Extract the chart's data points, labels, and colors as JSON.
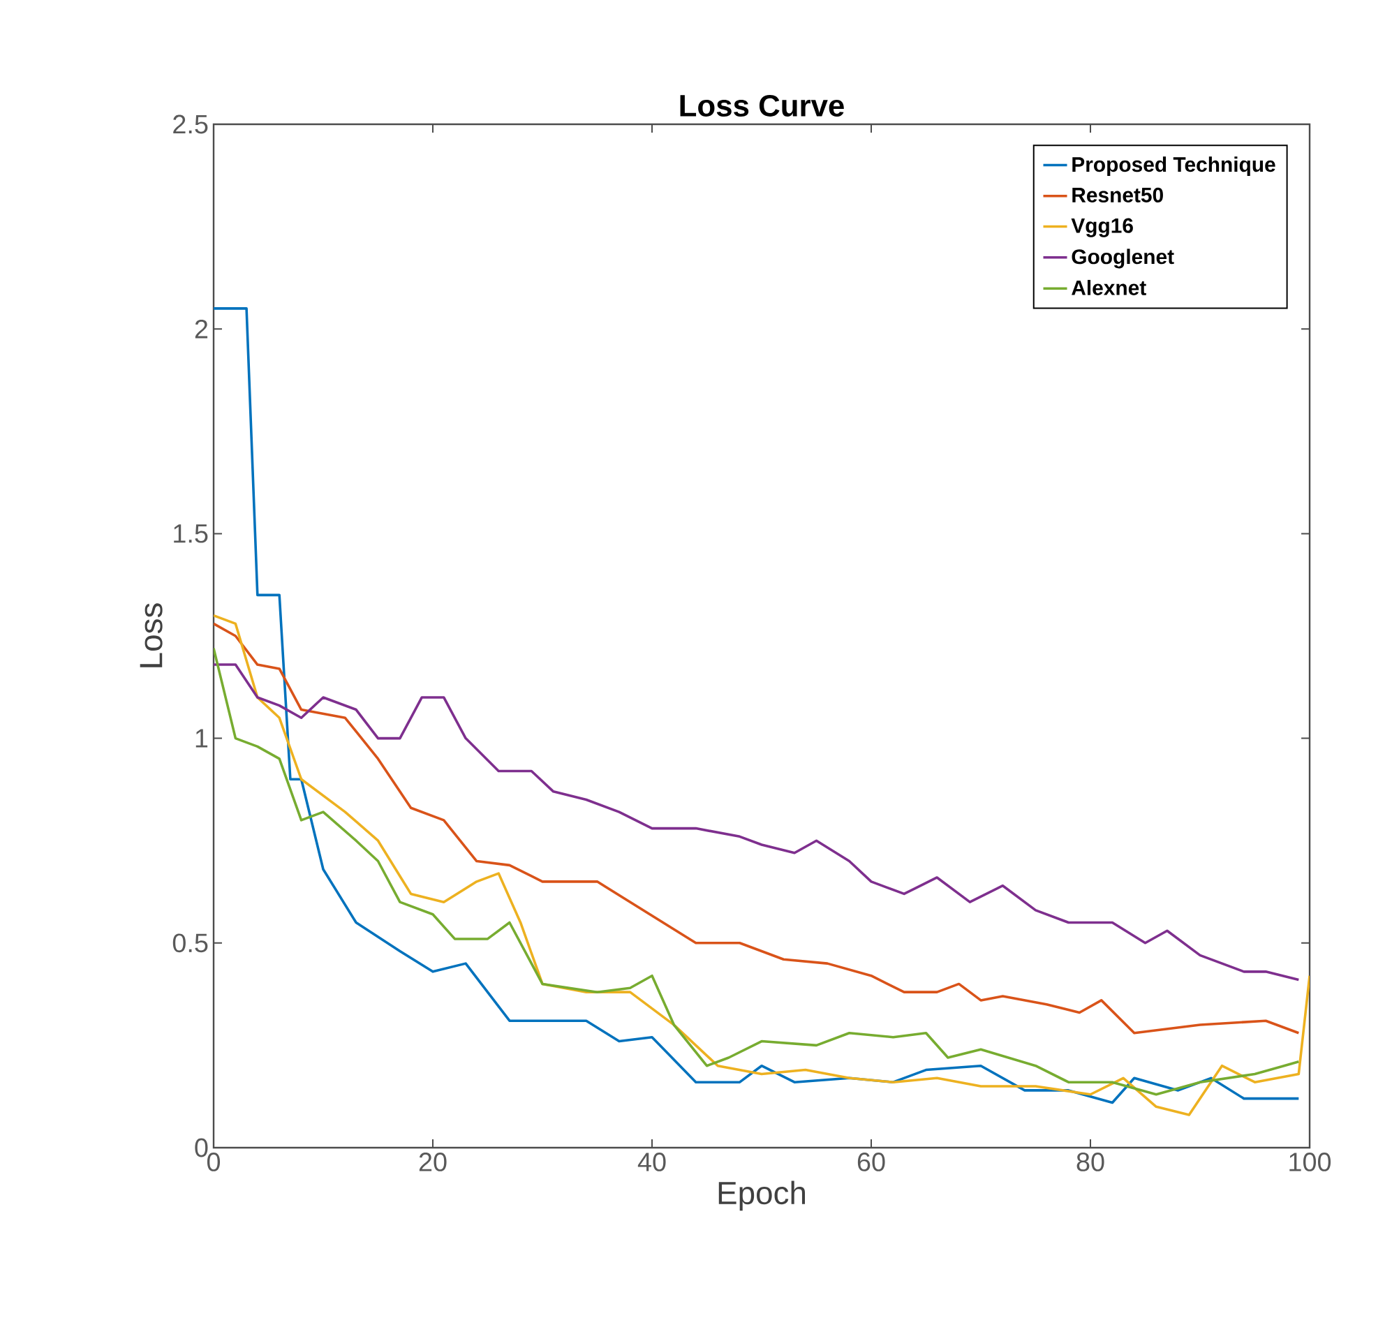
{
  "chart_data": {
    "type": "line",
    "title": "Loss Curve",
    "xlabel": "Epoch",
    "ylabel": "Loss",
    "xlim": [
      0,
      100
    ],
    "ylim": [
      0,
      2.5
    ],
    "xticks": [
      0,
      20,
      40,
      60,
      80,
      100
    ],
    "yticks": [
      0,
      0.5,
      1,
      1.5,
      2,
      2.5
    ],
    "grid": false,
    "legend": "top right",
    "line_style": "solid",
    "series": [
      {
        "name": "Proposed Technique",
        "color": "#0072bd",
        "x": [
          0,
          3,
          4,
          6,
          7,
          8,
          10,
          13,
          17,
          20,
          23,
          27,
          34,
          37,
          40,
          44,
          48,
          50,
          53,
          58,
          62,
          65,
          70,
          74,
          78,
          82,
          84,
          88,
          91,
          94,
          99
        ],
        "values": [
          2.05,
          2.05,
          1.35,
          1.35,
          0.9,
          0.9,
          0.68,
          0.55,
          0.48,
          0.43,
          0.45,
          0.31,
          0.31,
          0.26,
          0.27,
          0.16,
          0.16,
          0.2,
          0.16,
          0.17,
          0.16,
          0.19,
          0.2,
          0.14,
          0.14,
          0.11,
          0.17,
          0.14,
          0.17,
          0.12,
          0.12
        ]
      },
      {
        "name": "Resnet50",
        "color": "#d95319",
        "x": [
          0,
          2,
          4,
          6,
          8,
          12,
          15,
          18,
          21,
          24,
          27,
          30,
          35,
          38,
          41,
          44,
          48,
          52,
          56,
          60,
          63,
          66,
          68,
          70,
          72,
          76,
          79,
          81,
          84,
          90,
          96,
          99
        ],
        "values": [
          1.28,
          1.25,
          1.18,
          1.17,
          1.07,
          1.05,
          0.95,
          0.83,
          0.8,
          0.7,
          0.69,
          0.65,
          0.65,
          0.6,
          0.55,
          0.5,
          0.5,
          0.46,
          0.45,
          0.42,
          0.38,
          0.38,
          0.4,
          0.36,
          0.37,
          0.35,
          0.33,
          0.36,
          0.28,
          0.3,
          0.31,
          0.28
        ]
      },
      {
        "name": "Vgg16",
        "color": "#edb120",
        "x": [
          0,
          2,
          4,
          6,
          8,
          12,
          15,
          18,
          21,
          24,
          26,
          28,
          30,
          34,
          38,
          42,
          46,
          50,
          54,
          58,
          62,
          66,
          70,
          75,
          80,
          83,
          86,
          89,
          92,
          95,
          99,
          100
        ],
        "values": [
          1.3,
          1.28,
          1.1,
          1.05,
          0.9,
          0.82,
          0.75,
          0.62,
          0.6,
          0.65,
          0.67,
          0.55,
          0.4,
          0.38,
          0.38,
          0.3,
          0.2,
          0.18,
          0.19,
          0.17,
          0.16,
          0.17,
          0.15,
          0.15,
          0.13,
          0.17,
          0.1,
          0.08,
          0.2,
          0.16,
          0.18,
          0.42
        ]
      },
      {
        "name": "Googlenet",
        "color": "#7e2f8e",
        "x": [
          0,
          2,
          4,
          6,
          8,
          10,
          13,
          15,
          17,
          19,
          21,
          23,
          26,
          29,
          31,
          34,
          37,
          40,
          44,
          48,
          50,
          53,
          55,
          58,
          60,
          63,
          66,
          69,
          72,
          75,
          78,
          82,
          85,
          87,
          90,
          94,
          96,
          99
        ],
        "values": [
          1.18,
          1.18,
          1.1,
          1.08,
          1.05,
          1.1,
          1.07,
          1.0,
          1.0,
          1.1,
          1.1,
          1.0,
          0.92,
          0.92,
          0.87,
          0.85,
          0.82,
          0.78,
          0.78,
          0.76,
          0.74,
          0.72,
          0.75,
          0.7,
          0.65,
          0.62,
          0.66,
          0.6,
          0.64,
          0.58,
          0.55,
          0.55,
          0.5,
          0.53,
          0.47,
          0.43,
          0.43,
          0.41
        ]
      },
      {
        "name": "Alexnet",
        "color": "#77ac30",
        "x": [
          0,
          2,
          4,
          6,
          8,
          10,
          13,
          15,
          17,
          20,
          22,
          25,
          27,
          30,
          35,
          38,
          40,
          42,
          45,
          47,
          50,
          55,
          58,
          62,
          65,
          67,
          70,
          75,
          78,
          82,
          86,
          90,
          95,
          99
        ],
        "values": [
          1.22,
          1.0,
          0.98,
          0.95,
          0.8,
          0.82,
          0.75,
          0.7,
          0.6,
          0.57,
          0.51,
          0.51,
          0.55,
          0.4,
          0.38,
          0.39,
          0.42,
          0.3,
          0.2,
          0.22,
          0.26,
          0.25,
          0.28,
          0.27,
          0.28,
          0.22,
          0.24,
          0.2,
          0.16,
          0.16,
          0.13,
          0.16,
          0.18,
          0.21
        ]
      }
    ]
  }
}
